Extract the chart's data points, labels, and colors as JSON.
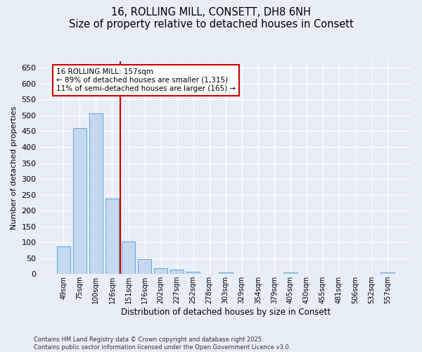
{
  "title1": "16, ROLLING MILL, CONSETT, DH8 6NH",
  "title2": "Size of property relative to detached houses in Consett",
  "xlabel": "Distribution of detached houses by size in Consett",
  "ylabel": "Number of detached properties",
  "categories": [
    "49sqm",
    "75sqm",
    "100sqm",
    "126sqm",
    "151sqm",
    "176sqm",
    "202sqm",
    "227sqm",
    "252sqm",
    "278sqm",
    "303sqm",
    "329sqm",
    "354sqm",
    "379sqm",
    "405sqm",
    "430sqm",
    "455sqm",
    "481sqm",
    "506sqm",
    "532sqm",
    "557sqm"
  ],
  "values": [
    88,
    459,
    506,
    238,
    103,
    47,
    18,
    13,
    8,
    0,
    4,
    0,
    0,
    0,
    4,
    0,
    0,
    0,
    0,
    0,
    4
  ],
  "bar_color": "#c5d8f0",
  "bar_edge_color": "#6aaad4",
  "vline_bin_index": 4,
  "vline_color": "#cc0000",
  "annotation_line1": "16 ROLLING MILL: 157sqm",
  "annotation_line2": "← 89% of detached houses are smaller (1,315)",
  "annotation_line3": "11% of semi-detached houses are larger (165) →",
  "annotation_box_edgecolor": "#cc0000",
  "ylim": [
    0,
    670
  ],
  "yticks": [
    0,
    50,
    100,
    150,
    200,
    250,
    300,
    350,
    400,
    450,
    500,
    550,
    600,
    650
  ],
  "footer1": "Contains HM Land Registry data © Crown copyright and database right 2025.",
  "footer2": "Contains public sector information licensed under the Open Government Licence v3.0.",
  "background_color": "#e8eef8",
  "grid_color": "#ffffff",
  "title_fontsize": 10.5,
  "bar_width": 0.85
}
